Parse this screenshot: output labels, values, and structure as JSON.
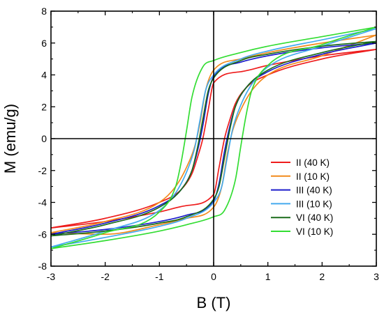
{
  "chart_data": {
    "type": "line",
    "title": "",
    "xlabel": "B (T)",
    "ylabel": "M (emu/g)",
    "xlim": [
      -3,
      3
    ],
    "ylim": [
      -8,
      8
    ],
    "xticks": [
      -3,
      -2,
      -1,
      0,
      1,
      2,
      3
    ],
    "yticks": [
      -8,
      -6,
      -4,
      -2,
      0,
      2,
      4,
      6,
      8
    ],
    "xtick_labels": [
      "-3",
      "-2",
      "-1",
      "0",
      "1",
      "2",
      "3"
    ],
    "ytick_labels": [
      "-8",
      "-6",
      "-4",
      "-2",
      "0",
      "2",
      "4",
      "6",
      "8"
    ],
    "grid": false,
    "zero_lines": true,
    "legend_position": "lower-right",
    "series": [
      {
        "name": "II (40 K)",
        "color": "#ee1c1c",
        "upper_branch": {
          "x": [
            -3,
            -2,
            -1,
            -0.6,
            -0.4,
            -0.3,
            -0.2,
            -0.1,
            0,
            0.5,
            1,
            2,
            3
          ],
          "y": [
            -5.6,
            -5.0,
            -4.0,
            -3.2,
            -2.2,
            -1.2,
            0,
            1.8,
            3.5,
            4.2,
            4.6,
            5.2,
            5.6
          ]
        },
        "lower_branch": {
          "x": [
            3,
            2,
            1,
            0.6,
            0.4,
            0.3,
            0.2,
            0.1,
            0,
            -0.5,
            -1,
            -2,
            -3
          ],
          "y": [
            5.6,
            5.0,
            4.0,
            3.2,
            2.2,
            1.2,
            0,
            -1.8,
            -3.5,
            -4.2,
            -4.6,
            -5.2,
            -5.6
          ]
        }
      },
      {
        "name": "II (10 K)",
        "color": "#f28a1c",
        "upper_branch": {
          "x": [
            -3,
            -2,
            -1,
            -0.7,
            -0.5,
            -0.35,
            -0.25,
            -0.15,
            0,
            0.5,
            1,
            2,
            3
          ],
          "y": [
            -5.9,
            -5.2,
            -4.0,
            -3.0,
            -1.8,
            -0.5,
            1.0,
            3.0,
            4.3,
            5.0,
            5.4,
            6.0,
            6.5
          ]
        },
        "lower_branch": {
          "x": [
            3,
            2,
            1,
            0.7,
            0.5,
            0.35,
            0.25,
            0.15,
            0,
            -0.5,
            -1,
            -2,
            -3
          ],
          "y": [
            6.5,
            5.2,
            4.0,
            3.0,
            1.8,
            0.5,
            -1.0,
            -3.0,
            -4.3,
            -5.0,
            -5.4,
            -6.0,
            -5.9
          ]
        }
      },
      {
        "name": "III (40 K)",
        "color": "#1c1ccc",
        "upper_branch": {
          "x": [
            -3,
            -2,
            -1,
            -0.6,
            -0.4,
            -0.3,
            -0.2,
            -0.1,
            0,
            0.5,
            1,
            2,
            3
          ],
          "y": [
            -6.0,
            -5.3,
            -4.2,
            -3.2,
            -2.0,
            -0.8,
            0.8,
            2.8,
            3.9,
            4.8,
            5.2,
            5.7,
            6.0
          ]
        },
        "lower_branch": {
          "x": [
            3,
            2,
            1,
            0.6,
            0.4,
            0.3,
            0.2,
            0.1,
            0,
            -0.5,
            -1,
            -2,
            -3
          ],
          "y": [
            6.0,
            5.3,
            4.2,
            3.2,
            2.0,
            0.8,
            -0.8,
            -2.8,
            -3.9,
            -4.8,
            -5.2,
            -5.7,
            -6.0
          ]
        }
      },
      {
        "name": "III (10 K)",
        "color": "#44aaee",
        "upper_branch": {
          "x": [
            -3,
            -2,
            -1,
            -0.7,
            -0.5,
            -0.35,
            -0.25,
            -0.15,
            0,
            0.5,
            1,
            2,
            3
          ],
          "y": [
            -6.8,
            -5.8,
            -4.5,
            -3.4,
            -2.1,
            -0.6,
            1.2,
            3.0,
            4.0,
            5.0,
            5.5,
            6.2,
            6.9
          ]
        },
        "lower_branch": {
          "x": [
            3,
            2,
            1,
            0.7,
            0.5,
            0.35,
            0.25,
            0.15,
            0,
            -0.5,
            -1,
            -2,
            -3
          ],
          "y": [
            6.9,
            5.8,
            4.5,
            3.4,
            2.1,
            0.6,
            -1.2,
            -3.0,
            -4.0,
            -5.0,
            -5.5,
            -6.2,
            -6.8
          ]
        }
      },
      {
        "name": "VI (40 K)",
        "color": "#1a6b1a",
        "upper_branch": {
          "x": [
            -3,
            -2,
            -1,
            -0.6,
            -0.4,
            -0.3,
            -0.2,
            -0.1,
            0,
            0.5,
            1,
            2,
            3
          ],
          "y": [
            -6.1,
            -5.4,
            -4.3,
            -3.2,
            -2.0,
            -0.6,
            1.2,
            3.0,
            3.8,
            4.9,
            5.3,
            5.8,
            6.1
          ]
        },
        "lower_branch": {
          "x": [
            3,
            2,
            1,
            0.6,
            0.4,
            0.3,
            0.2,
            0.1,
            0,
            -0.5,
            -1,
            -2,
            -3
          ],
          "y": [
            6.1,
            5.4,
            4.3,
            3.2,
            2.0,
            0.6,
            -1.2,
            -3.0,
            -3.8,
            -4.9,
            -5.3,
            -5.8,
            -6.1
          ]
        }
      },
      {
        "name": "VI (10 K)",
        "color": "#33dd33",
        "upper_branch": {
          "x": [
            -3,
            -2,
            -1,
            -0.7,
            -0.6,
            -0.5,
            -0.4,
            -0.2,
            0,
            0.5,
            1,
            2,
            3
          ],
          "y": [
            -6.9,
            -5.9,
            -4.6,
            -3.0,
            -1.5,
            0.5,
            2.6,
            4.5,
            4.9,
            5.4,
            5.8,
            6.4,
            7.0
          ]
        },
        "lower_branch": {
          "x": [
            3,
            2,
            1,
            0.7,
            0.6,
            0.5,
            0.4,
            0.2,
            0,
            -0.5,
            -1,
            -2,
            -3
          ],
          "y": [
            7.0,
            5.9,
            4.6,
            3.0,
            1.5,
            -0.5,
            -2.6,
            -4.5,
            -4.9,
            -5.4,
            -5.8,
            -6.4,
            -6.9
          ]
        }
      }
    ]
  }
}
